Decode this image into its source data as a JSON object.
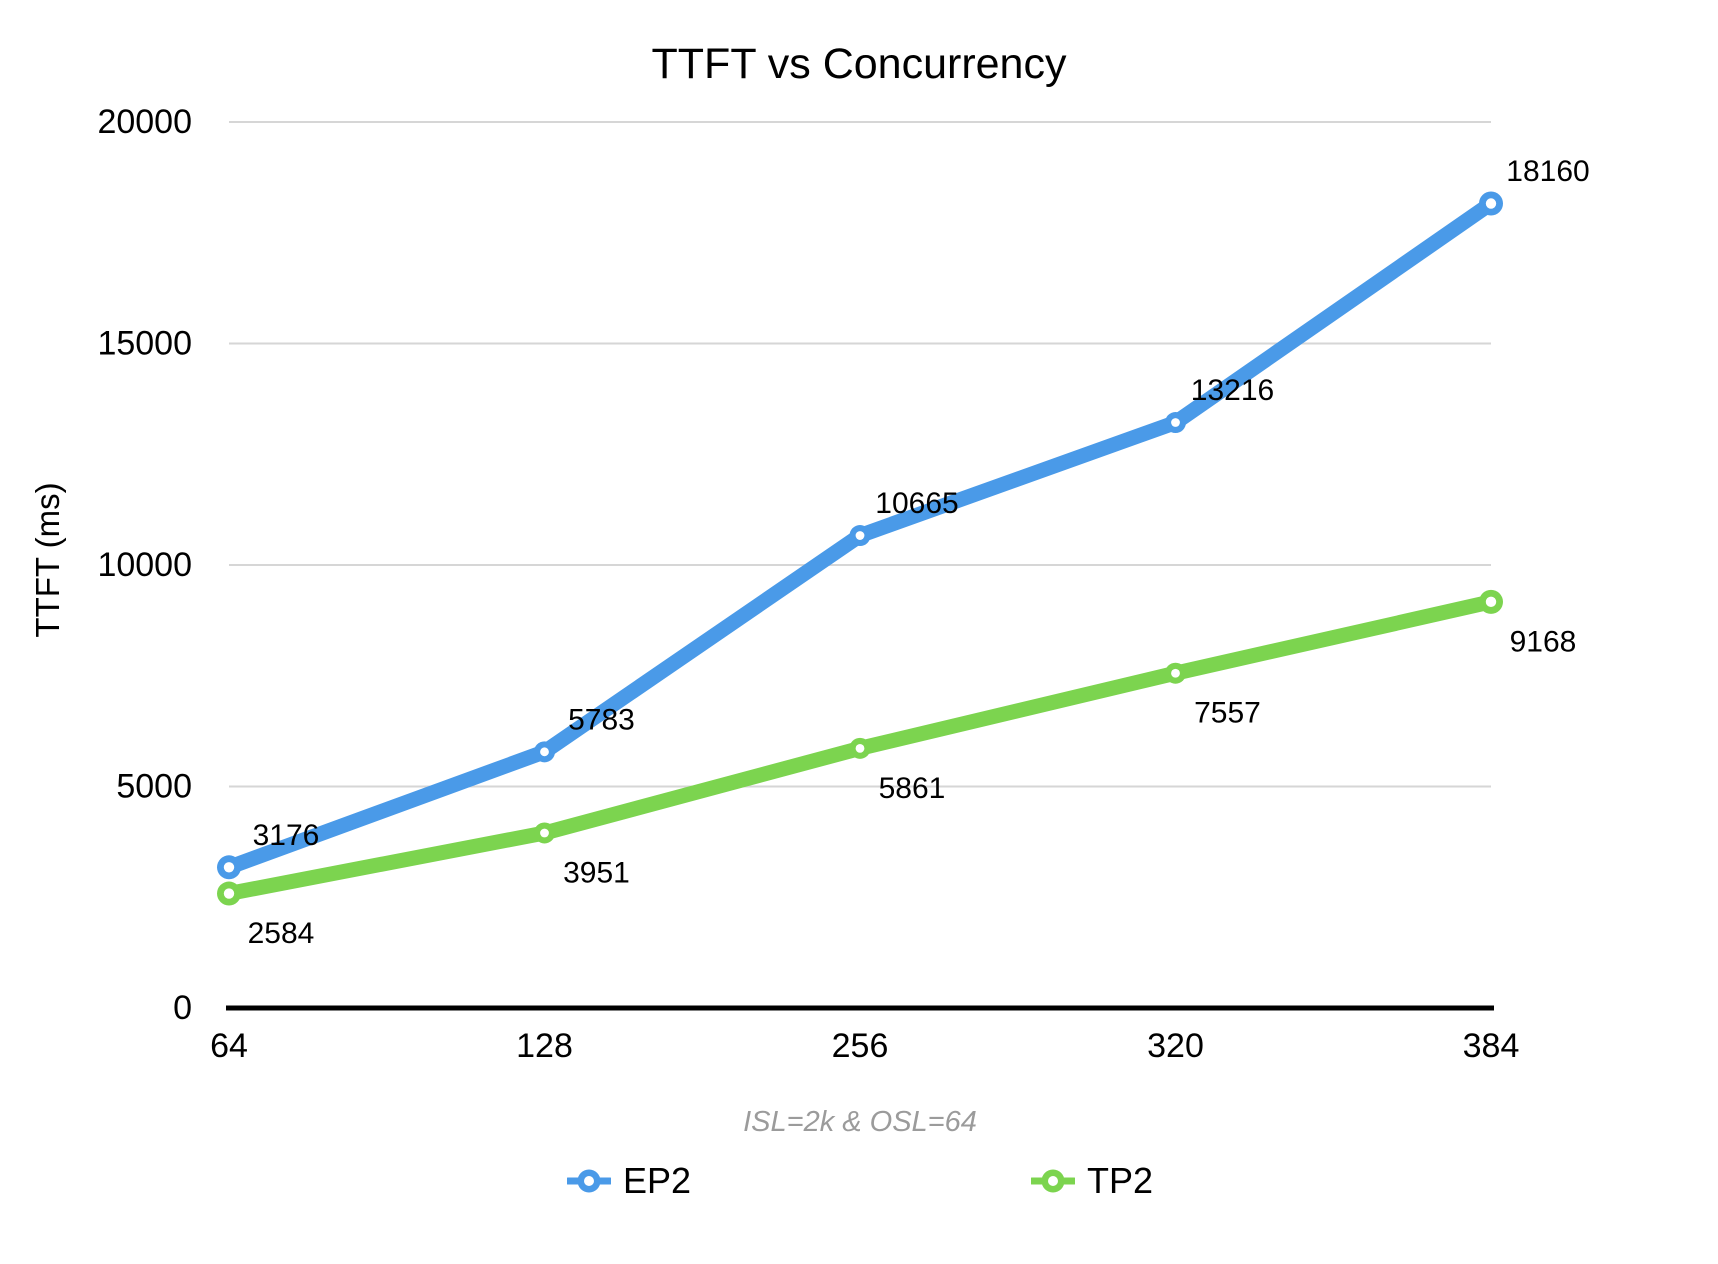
{
  "chart_data": {
    "type": "line",
    "title": "TTFT vs Concurrency",
    "ylabel": "TTFT (ms)",
    "xlabel": "ISL=2k & OSL=64",
    "categories": [
      "64",
      "128",
      "256",
      "320",
      "384"
    ],
    "series": [
      {
        "name": "EP2",
        "color": "#4a9ae8",
        "values": [
          3176,
          5783,
          10665,
          13216,
          18160
        ],
        "labels_position": "above"
      },
      {
        "name": "TP2",
        "color": "#7cd44f",
        "values": [
          2584,
          3951,
          5861,
          7557,
          9168
        ],
        "labels_position": "below"
      }
    ],
    "ylim": [
      0,
      20000
    ],
    "yticks": [
      0,
      5000,
      10000,
      15000,
      20000
    ],
    "grid": true,
    "legend_position": "bottom",
    "colors": {
      "gridline": "#d6d6d6",
      "axis": "#000000",
      "subtitle_text": "#9b9b9b",
      "label_text": "#000000"
    }
  }
}
